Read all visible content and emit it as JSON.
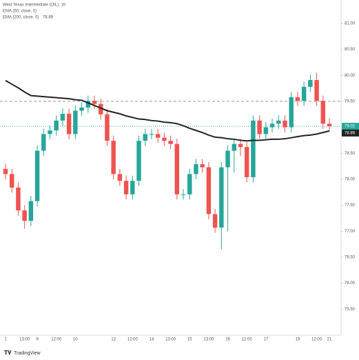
{
  "chart_data": {
    "type": "candlestick",
    "title": "West Texas Intermediate (OIL), 1h",
    "indicator_labels": [
      "EMA (50, close, 0)",
      "EMA (200, close, 0)"
    ],
    "categories": [
      "1",
      null,
      null,
      "13:00",
      null,
      "9",
      null,
      null,
      "12:00",
      null,
      null,
      "10",
      null,
      null,
      null,
      null,
      null,
      "12",
      null,
      null,
      "12:00",
      null,
      null,
      "14",
      null,
      null,
      "13:00",
      null,
      null,
      "15",
      null,
      null,
      "13:00",
      null,
      null,
      "16",
      null,
      null,
      "12:00",
      null,
      null,
      "17",
      null,
      null,
      null,
      null,
      "19",
      null,
      null,
      "12:00",
      null,
      "21"
    ],
    "open": [
      78.2,
      78.1,
      77.84,
      77.4,
      77.2,
      77.58,
      78.55,
      78.87,
      78.94,
      79.13,
      79.26,
      78.87,
      79.32,
      79.38,
      79.51,
      79.45,
      79.25,
      78.74,
      78.1,
      77.97,
      77.71,
      77.97,
      78.74,
      78.87,
      78.87,
      78.8,
      78.74,
      78.68,
      77.71,
      77.71,
      78.1,
      78.29,
      78.23,
      77.33,
      77.07,
      78.23,
      78.55,
      78.68,
      78.62,
      78.04,
      79.13,
      78.87,
      79.0,
      79.07,
      79.13,
      79.0,
      79.58,
      79.51,
      79.78,
      79.91,
      79.51,
      79.07
    ],
    "high": [
      78.3,
      78.2,
      77.94,
      77.5,
      77.68,
      78.65,
      78.97,
      79.04,
      79.23,
      79.36,
      79.36,
      79.42,
      79.48,
      79.61,
      79.61,
      79.55,
      79.35,
      78.84,
      78.2,
      78.07,
      78.07,
      78.84,
      78.97,
      78.97,
      78.97,
      78.9,
      78.84,
      78.78,
      77.81,
      78.2,
      78.39,
      78.39,
      78.33,
      77.43,
      78.33,
      78.65,
      78.78,
      78.78,
      78.72,
      79.23,
      79.23,
      79.1,
      79.17,
      79.23,
      79.23,
      79.68,
      79.68,
      79.88,
      80.01,
      80.05,
      79.61,
      79.17
    ],
    "low": [
      78.0,
      77.74,
      77.3,
      77.05,
      77.1,
      77.48,
      78.45,
      78.77,
      78.84,
      79.03,
      78.77,
      78.77,
      79.22,
      79.28,
      79.35,
      79.15,
      78.64,
      78.0,
      77.87,
      77.61,
      77.61,
      77.87,
      78.64,
      78.77,
      78.7,
      78.64,
      78.58,
      77.61,
      77.61,
      77.61,
      78.0,
      78.13,
      77.23,
      76.97,
      76.65,
      77.0,
      78.13,
      78.45,
      77.94,
      77.94,
      78.77,
      78.77,
      78.9,
      78.97,
      78.9,
      78.9,
      79.41,
      79.41,
      79.68,
      79.41,
      78.97,
      78.92
    ],
    "close": [
      78.1,
      77.84,
      77.4,
      77.2,
      77.58,
      78.55,
      78.87,
      78.94,
      79.13,
      79.26,
      78.87,
      79.32,
      79.38,
      79.51,
      79.45,
      79.25,
      78.74,
      78.1,
      77.97,
      77.71,
      77.97,
      78.74,
      78.87,
      78.87,
      78.8,
      78.74,
      78.68,
      77.71,
      77.71,
      78.1,
      78.29,
      78.23,
      77.33,
      77.07,
      78.23,
      78.55,
      78.68,
      78.62,
      78.04,
      79.13,
      78.87,
      79.0,
      79.07,
      79.13,
      79.0,
      79.58,
      79.51,
      79.78,
      79.91,
      79.51,
      79.07,
      79.02
    ],
    "up_color": "#26a69a",
    "down_color": "#ef5350",
    "lines": [
      {
        "name": "EMA (200, close, 0)",
        "color": "#222222",
        "values": [
          79.9,
          79.83,
          79.76,
          79.68,
          79.61,
          79.6,
          79.59,
          79.58,
          79.57,
          79.56,
          79.55,
          79.53,
          79.52,
          79.47,
          79.42,
          79.37,
          79.32,
          79.29,
          79.26,
          79.22,
          79.19,
          79.16,
          79.15,
          79.13,
          79.12,
          79.1,
          79.09,
          79.07,
          79.03,
          78.98,
          78.94,
          78.9,
          78.85,
          78.81,
          78.8,
          78.78,
          78.77,
          78.75,
          78.74,
          78.75,
          78.75,
          78.76,
          78.77,
          78.77,
          78.78,
          78.8,
          78.82,
          78.84,
          78.85,
          78.87,
          78.9,
          78.93
        ]
      }
    ],
    "ylim": [
      75.0,
      81.45
    ],
    "yticks": [
      {
        "value": 81,
        "label": "81.00"
      },
      {
        "value": 80.5,
        "label": "80.50"
      },
      {
        "value": 80,
        "label": "80.00"
      },
      {
        "value": 79.5,
        "label": "79.50"
      },
      {
        "value": 78.5,
        "label": "78.50"
      },
      {
        "value": 78,
        "label": "78.00"
      },
      {
        "value": 77.5,
        "label": "77.50"
      },
      {
        "value": 77,
        "label": "77.00"
      },
      {
        "value": 76.5,
        "label": "76.50"
      },
      {
        "value": 76,
        "label": "76.00"
      },
      {
        "value": 75.5,
        "label": "75.50"
      }
    ],
    "resistance": 79.5,
    "last_price": 79.02,
    "ema_last": 78.89,
    "brand": "TradingView"
  }
}
